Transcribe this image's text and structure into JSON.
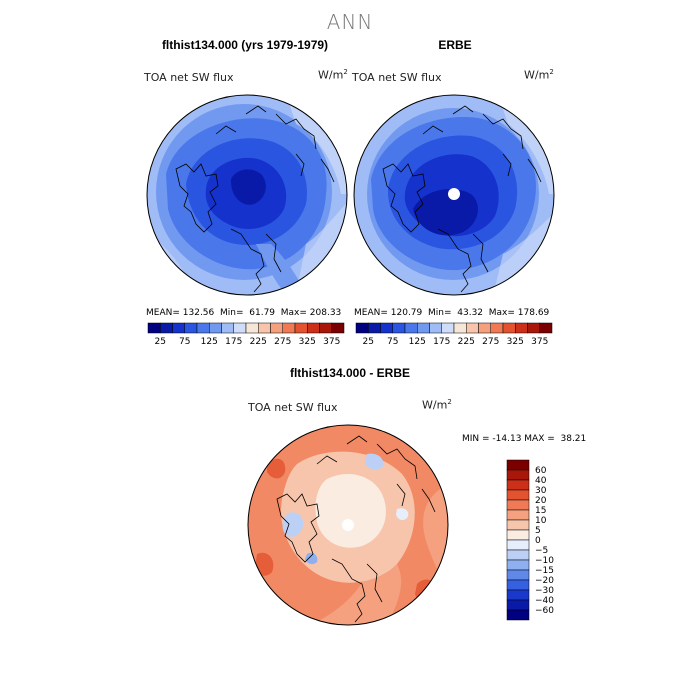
{
  "figure": {
    "title": "ANN"
  },
  "panels": {
    "model": {
      "title": "flthist134.000 (yrs 1979-1979)",
      "variable": "TOA net SW flux",
      "units_base": "W/m",
      "units_exp": "2",
      "stats": {
        "mean_label": "MEAN=",
        "mean": "132.56",
        "min_label": "Min=",
        "min": "61.79",
        "max_label": "Max=",
        "max": "208.33"
      }
    },
    "obs": {
      "title": "ERBE",
      "variable": "TOA net SW flux",
      "units_base": "W/m",
      "units_exp": "2",
      "stats": {
        "mean_label": "MEAN=",
        "mean": "120.79",
        "min_label": "Min=",
        "min": "43.32",
        "max_label": "Max=",
        "max": "178.69"
      }
    },
    "diff": {
      "title": "flthist134.000 - ERBE",
      "variable": "TOA net SW flux",
      "units_base": "W/m",
      "units_exp": "2",
      "stats_text": "MIN = -14.13 MAX =  38.21"
    }
  },
  "chart_data": [
    {
      "type": "heatmap",
      "title": "flthist134.000 (yrs 1979-1979)",
      "subtitle": "TOA net SW flux",
      "projection": "north-polar-stereographic",
      "colorbar": {
        "orientation": "horizontal",
        "tick_labels": [
          "25",
          "75",
          "125",
          "175",
          "225",
          "275",
          "325",
          "375"
        ],
        "colors": [
          "#000080",
          "#0a1aa8",
          "#1533cc",
          "#2a55e0",
          "#4a78ea",
          "#7299f0",
          "#a0bcf6",
          "#cfdcfa",
          "#f5e6d8",
          "#f7c5ac",
          "#f5a07e",
          "#ef7a55",
          "#e4532f",
          "#cc3018",
          "#a8170a",
          "#7a0000"
        ]
      },
      "stats": {
        "mean": 132.56,
        "min": 61.79,
        "max": 208.33
      }
    },
    {
      "type": "heatmap",
      "title": "ERBE",
      "subtitle": "TOA net SW flux",
      "projection": "north-polar-stereographic",
      "colorbar": {
        "orientation": "horizontal",
        "tick_labels": [
          "25",
          "75",
          "125",
          "175",
          "225",
          "275",
          "325",
          "375"
        ],
        "colors": [
          "#000080",
          "#0a1aa8",
          "#1533cc",
          "#2a55e0",
          "#4a78ea",
          "#7299f0",
          "#a0bcf6",
          "#cfdcfa",
          "#f5e6d8",
          "#f7c5ac",
          "#f5a07e",
          "#ef7a55",
          "#e4532f",
          "#cc3018",
          "#a8170a",
          "#7a0000"
        ]
      },
      "stats": {
        "mean": 120.79,
        "min": 43.32,
        "max": 178.69
      }
    },
    {
      "type": "heatmap",
      "title": "flthist134.000 - ERBE",
      "subtitle": "TOA net SW flux",
      "projection": "north-polar-stereographic",
      "colorbar": {
        "orientation": "vertical",
        "tick_labels": [
          "60",
          "40",
          "30",
          "20",
          "15",
          "10",
          "5",
          "0",
          "−5",
          "−10",
          "−15",
          "−20",
          "−30",
          "−40",
          "−60"
        ],
        "colors": [
          "#7a0000",
          "#a8170a",
          "#cc3018",
          "#e4532f",
          "#ef7a55",
          "#f5a07e",
          "#f7c5ac",
          "#faece0",
          "#e6eefc",
          "#bcd0f6",
          "#8fb0f0",
          "#6088e8",
          "#3560e0",
          "#1a38cc",
          "#0a1aa8",
          "#000080"
        ]
      },
      "stats": {
        "min": -14.13,
        "max": 38.21
      }
    }
  ]
}
